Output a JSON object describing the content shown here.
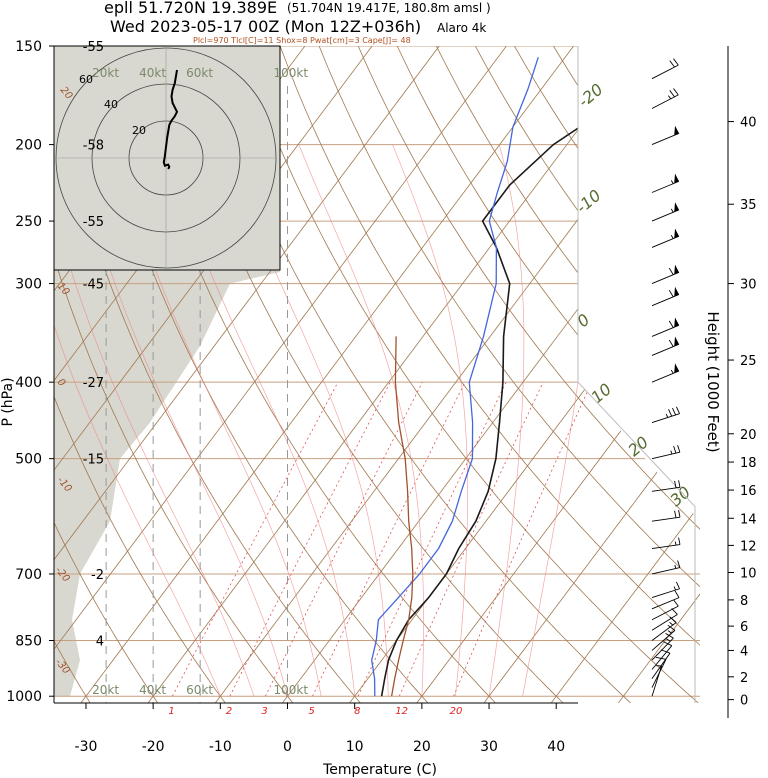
{
  "header": {
    "station": "epll 51.720N 19.389E",
    "location": "(51.704N 19.417E, 180.8m amsl )",
    "valid": "Wed 2023-05-17 00Z (Mon 12Z+036h)",
    "model": "Alaro 4k",
    "indices": "Plcl=970 Tlcl[C]=11 Shox=8 Pwat[cm]=3 Cape[J]= 48"
  },
  "chart_data": {
    "type": "line",
    "xlabel": "Temperature (C)",
    "ylabel": "P (hPa)",
    "y2label": "Height (1000 Feet)",
    "xlim": [
      -34,
      44
    ],
    "ylim": [
      1020,
      150
    ],
    "y_scale": "log",
    "x_ticks": [
      "-30",
      "-20",
      "-10",
      "0",
      "10",
      "20",
      "30",
      "40"
    ],
    "pressure_ticks": [
      "150",
      "200",
      "250",
      "300",
      "400",
      "500",
      "700",
      "850",
      "1000"
    ],
    "height_ticks": [
      "0",
      "2",
      "4",
      "6",
      "8",
      "10",
      "12",
      "14",
      "16",
      "18",
      "20",
      "25",
      "30",
      "35",
      "40"
    ],
    "height_tick_kft": [
      0,
      2,
      4,
      6,
      8,
      10,
      12,
      14,
      16,
      18,
      20,
      25,
      30,
      35,
      40
    ],
    "height_tick_p": [
      1010,
      945,
      875,
      815,
      755,
      697,
      644,
      595,
      548,
      505,
      465,
      375,
      300,
      238,
      187
    ],
    "standard_temps": [
      {
        "p": 150,
        "label": "-55"
      },
      {
        "p": 200,
        "label": "-58"
      },
      {
        "p": 250,
        "label": "-55"
      },
      {
        "p": 300,
        "label": "-45"
      },
      {
        "p": 400,
        "label": "-27"
      },
      {
        "p": 500,
        "label": "-15"
      },
      {
        "p": 700,
        "label": "-2"
      },
      {
        "p": 850,
        "label": "4"
      }
    ],
    "series": [
      {
        "name": "",
        "color": "#1a1a1a",
        "points": [
          [
            14,
            1000
          ],
          [
            12.5,
            950
          ],
          [
            11,
            900
          ],
          [
            10,
            850
          ],
          [
            9.5,
            800
          ],
          [
            10,
            750
          ],
          [
            10,
            700
          ],
          [
            9,
            650
          ],
          [
            8.5,
            600
          ],
          [
            7,
            550
          ],
          [
            4.5,
            500
          ],
          [
            1,
            450
          ],
          [
            -3,
            400
          ],
          [
            -8,
            350
          ],
          [
            -13,
            300
          ],
          [
            -19,
            270
          ],
          [
            -24,
            250
          ],
          [
            -24,
            225
          ],
          [
            -22,
            200
          ],
          [
            -18,
            180
          ],
          [
            -12,
            165
          ],
          [
            -8,
            155
          ],
          [
            -6,
            150
          ]
        ]
      },
      {
        "name": "",
        "color": "#4466dd",
        "points": [
          [
            13,
            1000
          ],
          [
            11,
            950
          ],
          [
            8.5,
            900
          ],
          [
            7,
            850
          ],
          [
            5,
            800
          ],
          [
            5.5,
            750
          ],
          [
            6,
            700
          ],
          [
            6,
            650
          ],
          [
            5,
            600
          ],
          [
            3,
            550
          ],
          [
            1,
            500
          ],
          [
            -3,
            450
          ],
          [
            -8,
            400
          ],
          [
            -11,
            350
          ],
          [
            -15,
            300
          ],
          [
            -19,
            270
          ],
          [
            -23,
            250
          ],
          [
            -25,
            230
          ],
          [
            -27,
            210
          ],
          [
            -30,
            190
          ],
          [
            -32,
            170
          ],
          [
            -34,
            155
          ]
        ]
      },
      {
        "name": "",
        "color": "#a0522d",
        "points": [
          [
            15.5,
            1000
          ],
          [
            14,
            950
          ],
          [
            12.5,
            900
          ],
          [
            11,
            850
          ],
          [
            9.5,
            800
          ],
          [
            7.5,
            750
          ],
          [
            5,
            700
          ],
          [
            2,
            650
          ],
          [
            -1.5,
            600
          ],
          [
            -5,
            550
          ],
          [
            -9,
            500
          ],
          [
            -14,
            450
          ],
          [
            -19,
            400
          ],
          [
            -24,
            350
          ]
        ]
      }
    ],
    "isotherm_labels": [
      {
        "t": -20,
        "label": "-20"
      },
      {
        "t": -10,
        "label": "-10"
      },
      {
        "t": 0,
        "label": "0"
      },
      {
        "t": 10,
        "label": "10"
      },
      {
        "t": 20,
        "label": "20"
      },
      {
        "t": 30,
        "label": "30"
      }
    ],
    "dry_adiabat_labels": [
      "30",
      "20",
      "10",
      "0",
      "-10",
      "-20",
      "-30"
    ],
    "mixing_ratio_labels": [
      {
        "w": 1,
        "label": "1"
      },
      {
        "w": 2,
        "label": "2"
      },
      {
        "w": 3,
        "label": "3"
      },
      {
        "w": 5,
        "label": "5"
      },
      {
        "w": 8,
        "label": "8"
      },
      {
        "w": 12,
        "label": "12"
      },
      {
        "w": 20,
        "label": "20"
      }
    ],
    "wind_speed_labels": [
      "20kt",
      "40kt",
      "60kt",
      "100kt"
    ],
    "wind_speed_columns_t": [
      -27,
      -20,
      -13,
      0
    ],
    "hodograph": {
      "ring_labels": [
        "20",
        "40",
        "60"
      ],
      "trace": [
        [
          2,
          -10
        ],
        [
          3,
          -8
        ],
        [
          2,
          -6
        ],
        [
          -1,
          -7
        ],
        [
          -2,
          -4
        ],
        [
          -1,
          2
        ],
        [
          0,
          10
        ],
        [
          1,
          18
        ],
        [
          2,
          24
        ],
        [
          3,
          30
        ],
        [
          5,
          34
        ],
        [
          8,
          38
        ],
        [
          10,
          42
        ],
        [
          8,
          46
        ],
        [
          6,
          50
        ],
        [
          5,
          56
        ],
        [
          6,
          62
        ],
        [
          8,
          68
        ],
        [
          9,
          74
        ],
        [
          10,
          80
        ]
      ]
    },
    "wind_barbs": [
      {
        "p": 1000,
        "spd": 8,
        "dir": 200
      },
      {
        "p": 975,
        "spd": 10,
        "dir": 210
      },
      {
        "p": 950,
        "spd": 12,
        "dir": 220
      },
      {
        "p": 925,
        "spd": 14,
        "dir": 225
      },
      {
        "p": 900,
        "spd": 15,
        "dir": 230
      },
      {
        "p": 875,
        "spd": 15,
        "dir": 235
      },
      {
        "p": 850,
        "spd": 15,
        "dir": 240
      },
      {
        "p": 825,
        "spd": 14,
        "dir": 245
      },
      {
        "p": 800,
        "spd": 14,
        "dir": 250
      },
      {
        "p": 775,
        "spd": 14,
        "dir": 255
      },
      {
        "p": 750,
        "spd": 15,
        "dir": 260
      },
      {
        "p": 700,
        "spd": 15,
        "dir": 265
      },
      {
        "p": 650,
        "spd": 18,
        "dir": 270
      },
      {
        "p": 600,
        "spd": 20,
        "dir": 270
      },
      {
        "p": 550,
        "spd": 20,
        "dir": 270
      },
      {
        "p": 500,
        "spd": 25,
        "dir": 265
      },
      {
        "p": 450,
        "spd": 35,
        "dir": 260
      },
      {
        "p": 400,
        "spd": 55,
        "dir": 255
      },
      {
        "p": 370,
        "spd": 60,
        "dir": 255
      },
      {
        "p": 350,
        "spd": 60,
        "dir": 255
      },
      {
        "p": 320,
        "spd": 60,
        "dir": 255
      },
      {
        "p": 300,
        "spd": 60,
        "dir": 255
      },
      {
        "p": 270,
        "spd": 55,
        "dir": 255
      },
      {
        "p": 250,
        "spd": 55,
        "dir": 255
      },
      {
        "p": 230,
        "spd": 55,
        "dir": 255
      },
      {
        "p": 200,
        "spd": 50,
        "dir": 255
      },
      {
        "p": 180,
        "spd": 25,
        "dir": 250
      },
      {
        "p": 165,
        "spd": 20,
        "dir": 250
      }
    ],
    "colors": {
      "isotherm": "#a07850",
      "dry_adiabat": "#a07850",
      "moist_adiabat": "#f08080",
      "mixing_ratio": "#e05050",
      "height_label": "#556b2f",
      "hodo_fill": "#d8d8d0",
      "grid": "#c8a080"
    }
  }
}
